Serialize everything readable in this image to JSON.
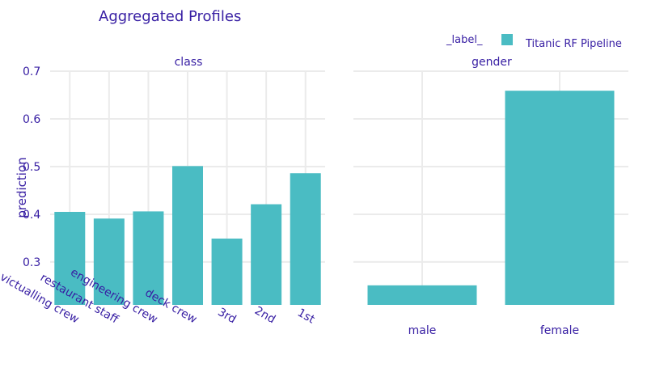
{
  "chart_data": {
    "type": "bar",
    "title": "Aggregated Profiles",
    "ylabel": "prediction",
    "ylim": [
      0.21,
      0.7
    ],
    "yticks": [
      0.3,
      0.4,
      0.5,
      0.6,
      0.7
    ],
    "legend": {
      "title": "_label_",
      "entries": [
        {
          "name": "Titanic RF Pipeline",
          "color": "#4abcc3"
        }
      ],
      "position": "top-right"
    },
    "facets": [
      {
        "name": "class",
        "categories": [
          "victualling crew",
          "restaurant staff",
          "engineering crew",
          "deck crew",
          "3rd",
          "2nd",
          "1st"
        ],
        "values": [
          0.405,
          0.391,
          0.406,
          0.501,
          0.349,
          0.421,
          0.486
        ]
      },
      {
        "name": "gender",
        "categories": [
          "male",
          "female"
        ],
        "values": [
          0.251,
          0.659
        ]
      }
    ],
    "colors": {
      "bar": "#4abcc3",
      "text": "#371ea3",
      "grid": "#ebebeb"
    }
  }
}
